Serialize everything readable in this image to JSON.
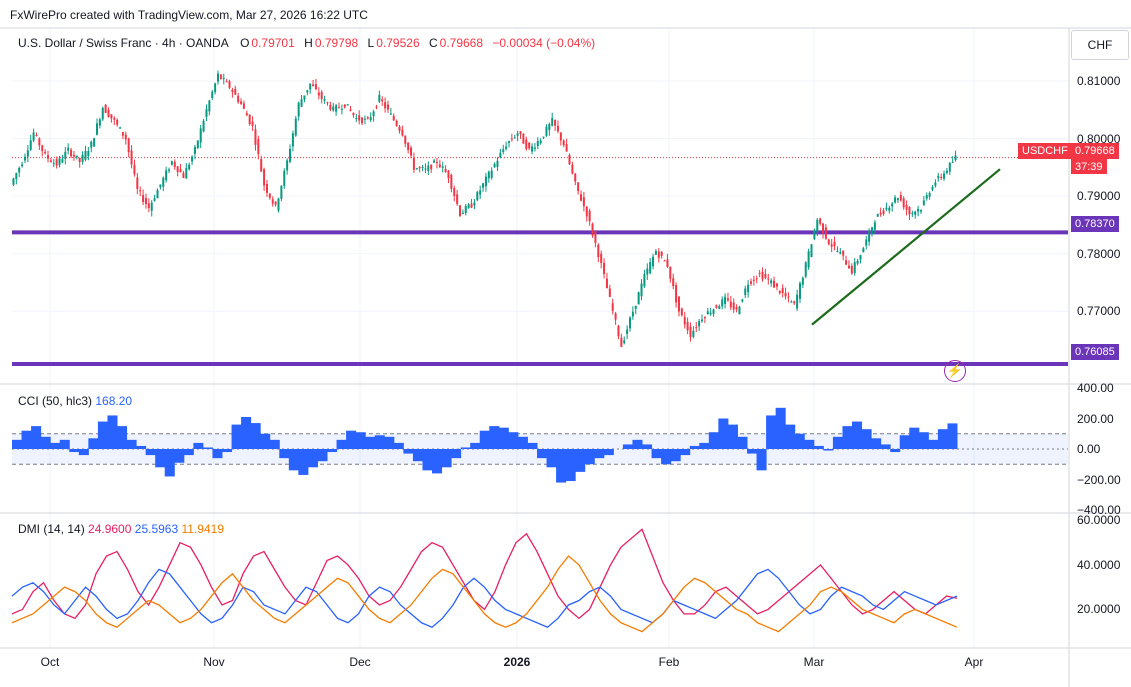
{
  "header": {
    "credit": "FxWirePro created with TradingView.com, Mar 27, 2026 16:22 UTC"
  },
  "legend": {
    "symbol": "U.S. Dollar / Swiss Franc · 4h · OANDA",
    "o_label": "O",
    "o": "0.79701",
    "h_label": "H",
    "h": "0.79798",
    "l_label": "L",
    "l": "0.79526",
    "c_label": "C",
    "c": "0.79668",
    "change": "−0.00034 (−0.04%)"
  },
  "currency": "CHF",
  "price_tags": {
    "symbol": "USDCHF",
    "last": "0.79668",
    "countdown": "37:39",
    "resistance": "0.78370",
    "support": "0.76085"
  },
  "cci_legend": {
    "name": "CCI (50, hlc3)",
    "value": "168.20"
  },
  "dmi_legend": {
    "name": "DMI (14, 14)",
    "adx": "24.9600",
    "plus_di": "25.5963",
    "minus_di": "11.9419"
  },
  "colors": {
    "up": "#089981",
    "down": "#f23645",
    "level": "#6a35b8",
    "trend": "#1b6b1b",
    "cci": "#2962ff",
    "adx": "#e91e63",
    "plus_di": "#2962ff",
    "minus_di": "#f57c00"
  },
  "chart_data": [
    {
      "type": "line",
      "title": "U.S. Dollar / Swiss Franc · 4h · OANDA",
      "x_labels": [
        "Oct",
        "Nov",
        "Dec",
        "2026",
        "Feb",
        "Mar",
        "Apr"
      ],
      "y_ticks": [
        "0.81000",
        "0.80000",
        "0.79000",
        "0.78000",
        "0.77000"
      ],
      "ylim": [
        0.7598,
        0.8133
      ],
      "levels": [
        0.7837,
        0.76085
      ],
      "trendline": [
        [
          0.76768,
          "Mar"
        ],
        [
          0.79468,
          "late Mar"
        ]
      ],
      "series": [
        {
          "values": [
            [
              0.792,
              0.796
            ],
            [
              0.796,
              0.801
            ],
            [
              0.801,
              0.797
            ],
            [
              0.797,
              0.7955
            ],
            [
              0.7955,
              0.798
            ],
            [
              0.798,
              0.796
            ],
            [
              0.796,
              0.799
            ],
            [
              0.799,
              0.8055
            ],
            [
              0.8055,
              0.803
            ],
            [
              0.803,
              0.8
            ],
            [
              0.8,
              0.791
            ],
            [
              0.791,
              0.788
            ],
            [
              0.788,
              0.792
            ],
            [
              0.792,
              0.796
            ],
            [
              0.796,
              0.7935
            ],
            [
              0.7935,
              0.798
            ],
            [
              0.798,
              0.805
            ],
            [
              0.805,
              0.811
            ],
            [
              0.811,
              0.809
            ],
            [
              0.809,
              0.806
            ],
            [
              0.806,
              0.802
            ],
            [
              0.802,
              0.792
            ],
            [
              0.792,
              0.788
            ],
            [
              0.788,
              0.796
            ],
            [
              0.796,
              0.806
            ],
            [
              0.806,
              0.8095
            ],
            [
              0.8095,
              0.807
            ],
            [
              0.807,
              0.805
            ],
            [
              0.805,
              0.806
            ],
            [
              0.806,
              0.8035
            ],
            [
              0.8035,
              0.803
            ],
            [
              0.803,
              0.807
            ],
            [
              0.807,
              0.804
            ],
            [
              0.804,
              0.801
            ],
            [
              0.801,
              0.795
            ],
            [
              0.795,
              0.7945
            ],
            [
              0.7945,
              0.796
            ],
            [
              0.796,
              0.7935
            ],
            [
              0.7935,
              0.787
            ],
            [
              0.787,
              0.7885
            ],
            [
              0.7885,
              0.792
            ],
            [
              0.792,
              0.7955
            ],
            [
              0.7955,
              0.799
            ],
            [
              0.799,
              0.801
            ],
            [
              0.801,
              0.798
            ],
            [
              0.798,
              0.8
            ],
            [
              0.8,
              0.803
            ],
            [
              0.803,
              0.799
            ],
            [
              0.799,
              0.792
            ],
            [
              0.792,
              0.787
            ],
            [
              0.787,
              0.78
            ],
            [
              0.78,
              0.772
            ],
            [
              0.772,
              0.764
            ],
            [
              0.764,
              0.77
            ],
            [
              0.77,
              0.776
            ],
            [
              0.776,
              0.7805
            ],
            [
              0.7805,
              0.778
            ],
            [
              0.778,
              0.77
            ],
            [
              0.77,
              0.766
            ],
            [
              0.766,
              0.769
            ],
            [
              0.769,
              0.7705
            ],
            [
              0.7705,
              0.772
            ],
            [
              0.772,
              0.77
            ],
            [
              0.77,
              0.775
            ],
            [
              0.775,
              0.7765
            ],
            [
              0.7765,
              0.775
            ],
            [
              0.775,
              0.773
            ],
            [
              0.773,
              0.771
            ],
            [
              0.771,
              0.778
            ],
            [
              0.778,
              0.786
            ],
            [
              0.786,
              0.782
            ],
            [
              0.782,
              0.78
            ],
            [
              0.78,
              0.777
            ],
            [
              0.777,
              0.781
            ],
            [
              0.781,
              0.786
            ],
            [
              0.786,
              0.788
            ],
            [
              0.788,
              0.79
            ],
            [
              0.79,
              0.787
            ],
            [
              0.787,
              0.788
            ],
            [
              0.788,
              0.792
            ],
            [
              0.792,
              0.794
            ],
            [
              0.794,
              0.7967
            ]
          ]
        }
      ]
    },
    {
      "type": "area",
      "title": "CCI (50, hlc3)",
      "y_ticks": [
        "400.00",
        "200.00",
        "0.00",
        "−200.00",
        "−400.00"
      ],
      "ylim": [
        -400,
        400
      ],
      "bands": [
        100,
        -100
      ],
      "values": [
        60,
        120,
        150,
        80,
        40,
        60,
        -20,
        -40,
        70,
        180,
        220,
        150,
        60,
        20,
        -40,
        -120,
        -180,
        -90,
        -40,
        40,
        10,
        -60,
        -20,
        160,
        210,
        170,
        100,
        60,
        -60,
        -140,
        -170,
        -120,
        -80,
        -20,
        60,
        120,
        110,
        80,
        90,
        80,
        40,
        -30,
        -80,
        -140,
        -160,
        -120,
        -60,
        10,
        40,
        120,
        150,
        140,
        110,
        80,
        40,
        -60,
        -120,
        -220,
        -210,
        -150,
        -100,
        -60,
        -40,
        0,
        30,
        60,
        30,
        -60,
        -100,
        -80,
        -40,
        20,
        40,
        110,
        200,
        160,
        80,
        -30,
        -140,
        220,
        270,
        160,
        100,
        60,
        20,
        -10,
        80,
        150,
        180,
        130,
        70,
        30,
        -20,
        90,
        140,
        110,
        60,
        130,
        168
      ]
    },
    {
      "type": "line",
      "title": "DMI (14, 14)",
      "y_ticks": [
        "60.0000",
        "40.0000",
        "20.0000"
      ],
      "ylim": [
        4,
        62
      ],
      "series": [
        {
          "name": "24.9600",
          "values": [
            18,
            20,
            28,
            32,
            24,
            18,
            16,
            22,
            36,
            44,
            46,
            38,
            28,
            22,
            30,
            40,
            50,
            48,
            40,
            30,
            22,
            24,
            36,
            44,
            46,
            38,
            30,
            24,
            22,
            32,
            42,
            44,
            40,
            34,
            26,
            22,
            24,
            30,
            38,
            46,
            50,
            48,
            40,
            32,
            24,
            20,
            28,
            40,
            50,
            54,
            46,
            36,
            26,
            20,
            16,
            20,
            30,
            40,
            48,
            52,
            56,
            44,
            32,
            24,
            18,
            18,
            22,
            28,
            30,
            26,
            22,
            18,
            20,
            24,
            28,
            32,
            36,
            40,
            34,
            28,
            22,
            18,
            20,
            24,
            28,
            24,
            20,
            18,
            22,
            26,
            25
          ]
        },
        {
          "name": "25.5963",
          "values": [
            26,
            30,
            32,
            28,
            22,
            18,
            24,
            30,
            26,
            20,
            16,
            18,
            24,
            32,
            38,
            36,
            30,
            24,
            18,
            14,
            16,
            22,
            30,
            28,
            22,
            20,
            18,
            24,
            30,
            28,
            22,
            16,
            14,
            18,
            26,
            30,
            28,
            22,
            18,
            14,
            12,
            16,
            22,
            30,
            34,
            30,
            24,
            20,
            18,
            16,
            14,
            12,
            16,
            22,
            24,
            28,
            30,
            26,
            20,
            18,
            16,
            14,
            18,
            24,
            22,
            20,
            18,
            16,
            20,
            24,
            30,
            36,
            38,
            34,
            28,
            22,
            18,
            20,
            26,
            30,
            28,
            26,
            22,
            20,
            24,
            28,
            26,
            24,
            22,
            24,
            26
          ]
        },
        {
          "name": "11.9419",
          "values": [
            14,
            16,
            18,
            22,
            26,
            30,
            28,
            24,
            18,
            14,
            12,
            16,
            20,
            24,
            22,
            18,
            14,
            16,
            20,
            26,
            32,
            36,
            30,
            24,
            20,
            16,
            14,
            18,
            22,
            26,
            30,
            34,
            32,
            26,
            20,
            16,
            14,
            18,
            22,
            28,
            34,
            38,
            36,
            30,
            24,
            18,
            14,
            12,
            14,
            18,
            24,
            30,
            38,
            44,
            40,
            32,
            24,
            18,
            14,
            12,
            10,
            14,
            18,
            24,
            30,
            34,
            32,
            28,
            24,
            20,
            18,
            14,
            12,
            10,
            14,
            18,
            22,
            28,
            30,
            28,
            24,
            20,
            18,
            16,
            14,
            18,
            20,
            18,
            16,
            14,
            12
          ]
        }
      ]
    }
  ]
}
